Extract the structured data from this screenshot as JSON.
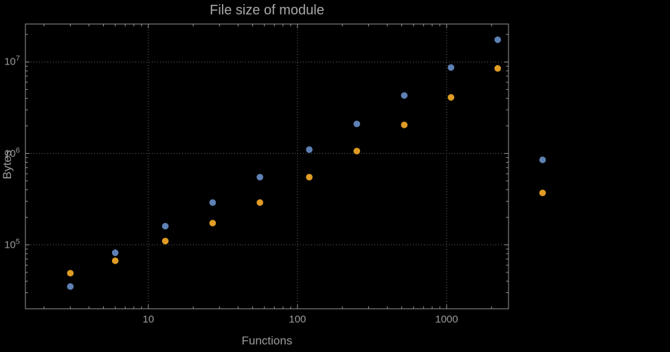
{
  "chart_data": {
    "type": "scatter",
    "title": "File size of module",
    "xlabel": "Functions",
    "ylabel": "Bytes",
    "xscale": "log",
    "yscale": "log",
    "xlim": [
      1.5,
      2600
    ],
    "ylim": [
      20000,
      26000000
    ],
    "grid": "dotted-major",
    "legend": "none",
    "x_major_ticks": [
      10,
      100,
      1000
    ],
    "x_tick_labels": [
      "10",
      "100",
      "1000"
    ],
    "y_major_ticks": [
      100000,
      1000000,
      10000000
    ],
    "y_tick_labels": [
      {
        "base": "10",
        "exp": "5"
      },
      {
        "base": "10",
        "exp": "6"
      },
      {
        "base": "10",
        "exp": "7"
      }
    ],
    "style": {
      "background": "#000000",
      "frame_color": "#9a9a9a",
      "grid_color": "#6f6f6f",
      "text_color": "#9c9c9c",
      "title_color": "#a8a8a8",
      "marker_radius": 4.8
    },
    "series": [
      {
        "name": "series-1",
        "color": "#5e81b5",
        "points": [
          [
            3,
            35000
          ],
          [
            6,
            82000
          ],
          [
            13,
            160000
          ],
          [
            27,
            290000
          ],
          [
            56,
            550000
          ],
          [
            120,
            1100000
          ],
          [
            250,
            2100000
          ],
          [
            520,
            4300000
          ],
          [
            1070,
            8700000
          ],
          [
            2200,
            17500000
          ],
          [
            4400,
            850000
          ]
        ]
      },
      {
        "name": "series-2",
        "color": "#e09c24",
        "points": [
          [
            3,
            49000
          ],
          [
            6,
            67000
          ],
          [
            13,
            110000
          ],
          [
            27,
            173000
          ],
          [
            56,
            290000
          ],
          [
            120,
            550000
          ],
          [
            250,
            1060000
          ],
          [
            520,
            2050000
          ],
          [
            1070,
            4100000
          ],
          [
            2200,
            8500000
          ],
          [
            4400,
            370000
          ]
        ]
      }
    ]
  }
}
